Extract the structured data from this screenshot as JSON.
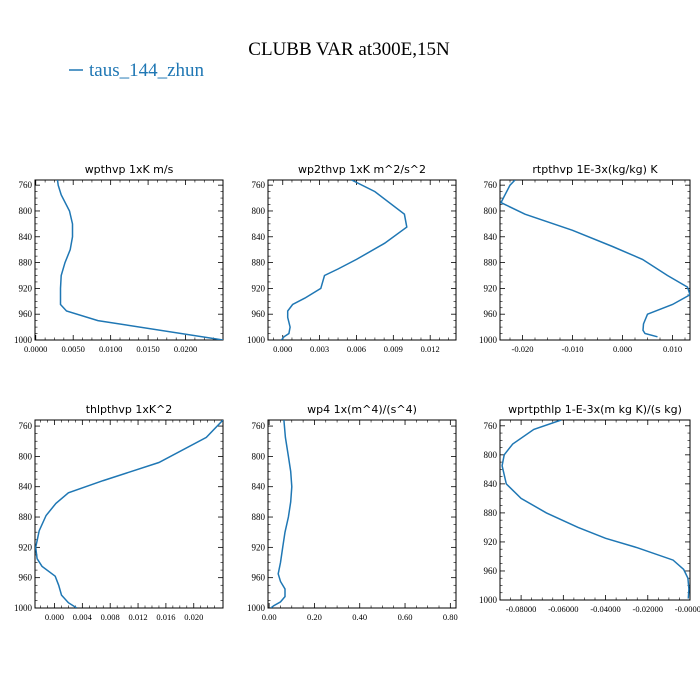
{
  "figure": {
    "title": "CLUBB VAR at300E,15N",
    "legend": [
      {
        "label": "taus_144_zhun",
        "color": "#1f77b4"
      }
    ]
  },
  "chart_data": [
    {
      "type": "line",
      "title": "wpthvp   1xK  m/s",
      "xlim": [
        -0.0001,
        0.025
      ],
      "ylim": [
        1000,
        752
      ],
      "y_inverted": true,
      "xticks": [
        0,
        0.005,
        0.01,
        0.015,
        0.02
      ],
      "xtick_labels": [
        "0.0000",
        "0.0050",
        "0.0100",
        "0.0150",
        "0.0200"
      ],
      "yticks": [
        760,
        800,
        840,
        880,
        920,
        960,
        1000
      ],
      "series": [
        {
          "color": "#1f77b4",
          "x": [
            0.0029,
            0.003,
            0.0034,
            0.0045,
            0.0049,
            0.0049,
            0.0046,
            0.0039,
            0.0034,
            0.0033,
            0.0033,
            0.0041,
            0.0083,
            0.025
          ],
          "y": [
            752,
            760,
            775,
            800,
            820,
            840,
            860,
            880,
            900,
            920,
            945,
            955,
            970,
            1000
          ]
        }
      ]
    },
    {
      "type": "line",
      "title": "wp2thvp   1xK  m^2/s^2",
      "xlim": [
        -0.0012,
        0.0141
      ],
      "ylim": [
        1000,
        752
      ],
      "y_inverted": true,
      "xticks": [
        0,
        0.003,
        0.006,
        0.009,
        0.012
      ],
      "xtick_labels": [
        "0.000",
        "0.003",
        "0.006",
        "0.009",
        "0.012"
      ],
      "yticks": [
        760,
        800,
        840,
        880,
        920,
        960,
        1000
      ],
      "series": [
        {
          "color": "#1f77b4",
          "x": [
            0.0056,
            0.0075,
            0.0099,
            0.0101,
            0.0083,
            0.006,
            0.0045,
            0.0034,
            0.0031,
            0.0018,
            0.0008,
            0.0004,
            0.0004,
            0.0006,
            0.0005,
            0.0001,
            -0.0001
          ],
          "y": [
            752,
            770,
            805,
            825,
            850,
            875,
            890,
            900,
            920,
            935,
            945,
            955,
            965,
            980,
            990,
            995,
            1000
          ]
        }
      ]
    },
    {
      "type": "line",
      "title": "rtpthvp   1E-3x(kg/kg)  K",
      "xlim": [
        -0.0245,
        0.0135
      ],
      "ylim": [
        1000,
        752
      ],
      "y_inverted": true,
      "xticks": [
        -0.02,
        -0.01,
        0,
        0.01
      ],
      "xtick_labels": [
        "-0.020",
        "-0.010",
        "0.000",
        "0.010"
      ],
      "yticks": [
        760,
        800,
        840,
        880,
        920,
        960,
        1000
      ],
      "series": [
        {
          "color": "#1f77b4",
          "x": [
            -0.0215,
            -0.0225,
            -0.0235,
            -0.0243,
            -0.0195,
            -0.01,
            -0.002,
            0.004,
            0.009,
            0.013,
            0.0135,
            0.01,
            0.005,
            0.0042,
            0.0041,
            0.0045,
            0.007
          ],
          "y": [
            752,
            760,
            775,
            787,
            805,
            830,
            855,
            875,
            900,
            918,
            930,
            945,
            960,
            975,
            985,
            990,
            995
          ]
        }
      ]
    },
    {
      "type": "line",
      "title": "thlpthvp   1xK^2",
      "xlim": [
        -0.0028,
        0.0242
      ],
      "ylim": [
        1000,
        752
      ],
      "y_inverted": true,
      "xticks": [
        0,
        0.004,
        0.008,
        0.012,
        0.016,
        0.02
      ],
      "xtick_labels": [
        "0.000",
        "0.004",
        "0.008",
        "0.012",
        "0.016",
        "0.020"
      ],
      "yticks": [
        760,
        800,
        840,
        880,
        920,
        960,
        1000
      ],
      "series": [
        {
          "color": "#1f77b4",
          "x": [
            0.0242,
            0.0218,
            0.015,
            0.007,
            0.002,
            0.0002,
            -0.0012,
            -0.0022,
            -0.0027,
            -0.0025,
            -0.0018,
            0.0001,
            0.0006,
            0.001,
            0.002,
            0.0032
          ],
          "y": [
            752,
            775,
            808,
            832,
            848,
            862,
            878,
            898,
            920,
            935,
            945,
            958,
            970,
            983,
            993,
            1000
          ]
        }
      ]
    },
    {
      "type": "line",
      "title": "wp4   1x(m^4)/(s^4)",
      "xlim": [
        -0.005,
        0.825
      ],
      "ylim": [
        1000,
        752
      ],
      "y_inverted": true,
      "xticks": [
        0,
        0.2,
        0.4,
        0.6,
        0.8
      ],
      "xtick_labels": [
        "0.00",
        "0.20",
        "0.40",
        "0.60",
        "0.80"
      ],
      "yticks": [
        760,
        800,
        840,
        880,
        920,
        960,
        1000
      ],
      "series": [
        {
          "color": "#1f77b4",
          "x": [
            0.065,
            0.072,
            0.085,
            0.095,
            0.1,
            0.095,
            0.085,
            0.07,
            0.06,
            0.05,
            0.04,
            0.05,
            0.07,
            0.07,
            0.05,
            0.02,
            0.008
          ],
          "y": [
            752,
            775,
            800,
            820,
            840,
            860,
            880,
            900,
            920,
            940,
            955,
            965,
            975,
            985,
            992,
            997,
            1000
          ]
        }
      ]
    },
    {
      "type": "line",
      "title": "wprtpthlp   1-E-3x(m kg K)/(s kg)",
      "xlim": [
        -0.09,
        0.0
      ],
      "ylim": [
        1000,
        752
      ],
      "y_inverted": true,
      "xticks": [
        -0.08,
        -0.06,
        -0.04,
        -0.02,
        0
      ],
      "xtick_labels": [
        "-0.08000",
        "-0.06000",
        "-0.04000",
        "-0.02000",
        "-0.00000"
      ],
      "yticks": [
        760,
        800,
        840,
        880,
        920,
        960,
        1000
      ],
      "series": [
        {
          "color": "#1f77b4",
          "x": [
            -0.061,
            -0.074,
            -0.084,
            -0.088,
            -0.089,
            -0.087,
            -0.08,
            -0.068,
            -0.053,
            -0.04,
            -0.025,
            -0.008,
            -0.003,
            -0.001,
            -0.0005,
            -0.0008
          ],
          "y": [
            752,
            765,
            785,
            800,
            815,
            840,
            860,
            880,
            900,
            915,
            928,
            945,
            958,
            970,
            985,
            998
          ]
        }
      ]
    }
  ]
}
